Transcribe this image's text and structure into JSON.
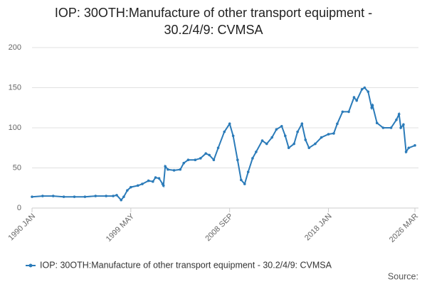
{
  "chart_data": {
    "type": "line",
    "title": "IOP: 30OTH:Manufacture of other transport equipment - 30.2/4/9: CVMSA",
    "source": "Source:",
    "x": [
      "1990 JAN",
      "1991 JAN",
      "1992 JAN",
      "1993 JAN",
      "1994 JAN",
      "1995 JAN",
      "1996 JAN",
      "1997 JAN",
      "1997 SEP",
      "1998 JAN",
      "1998 JUN",
      "1998 SEP",
      "1999 JAN",
      "1999 MAY",
      "2000 JAN",
      "2000 JUN",
      "2001 JAN",
      "2001 JUN",
      "2001 SEP",
      "2002 JAN",
      "2002 MAY",
      "2002 JUN",
      "2002 AUG",
      "2002 NOV",
      "2003 JUN",
      "2004 JAN",
      "2004 MAY",
      "2004 OCT",
      "2005 JUN",
      "2005 DEC",
      "2006 JUN",
      "2006 OCT",
      "2007 MAR",
      "2007 AUG",
      "2008 MAR",
      "2008 SEP",
      "2009 JAN",
      "2009 JUN",
      "2009 OCT",
      "2010 FEB",
      "2010 JUN",
      "2010 NOV",
      "2011 MAR",
      "2011 OCT",
      "2012 MAR",
      "2012 SEP",
      "2013 FEB",
      "2013 AUG",
      "2013 DEC",
      "2014 APR",
      "2014 OCT",
      "2015 FEB",
      "2015 JUL",
      "2015 NOV",
      "2016 MAR",
      "2016 OCT",
      "2017 MAY",
      "2018 JAN",
      "2018 JUL",
      "2018 NOV",
      "2019 MAY",
      "2019 DEC",
      "2020 JUN",
      "2020 SEP",
      "2021 MAR",
      "2021 JUN",
      "2021 OCT",
      "2022 FEB",
      "2022 MAR",
      "2022 AUG",
      "2023 MAR",
      "2023 DEC",
      "2024 JUN",
      "2024 SEP",
      "2024 NOV",
      "2025 FEB",
      "2025 MAY",
      "2025 AUG",
      "2026 MAR"
    ],
    "series": [
      {
        "name": "IOP: 30OTH:Manufacture of other transport equipment - 30.2/4/9: CVMSA",
        "color": "#2b7bb9",
        "values": [
          14,
          15,
          15,
          14,
          14,
          14,
          15,
          15,
          15,
          16,
          10,
          14,
          22,
          26,
          28,
          30,
          34,
          33,
          38,
          37,
          30,
          28,
          52,
          48,
          47,
          48,
          56,
          60,
          60,
          62,
          68,
          66,
          60,
          75,
          95,
          105,
          90,
          60,
          35,
          30,
          45,
          62,
          70,
          84,
          80,
          88,
          98,
          102,
          90,
          75,
          80,
          95,
          105,
          85,
          75,
          80,
          88,
          92,
          93,
          105,
          120,
          120,
          138,
          134,
          148,
          150,
          145,
          125,
          128,
          106,
          100,
          100,
          110,
          117,
          100,
          104,
          70,
          75,
          78
        ]
      }
    ],
    "xlim": [
      "1990 JAN",
      "2026 MAR"
    ],
    "xticks": [
      "1990 JAN",
      "1999 MAY",
      "2008 SEP",
      "2018 JAN",
      "2026 MAR"
    ],
    "ylim": [
      0,
      200
    ],
    "yticks": [
      0,
      50,
      100,
      150,
      200
    ],
    "grid": true,
    "legend": "bottom"
  }
}
